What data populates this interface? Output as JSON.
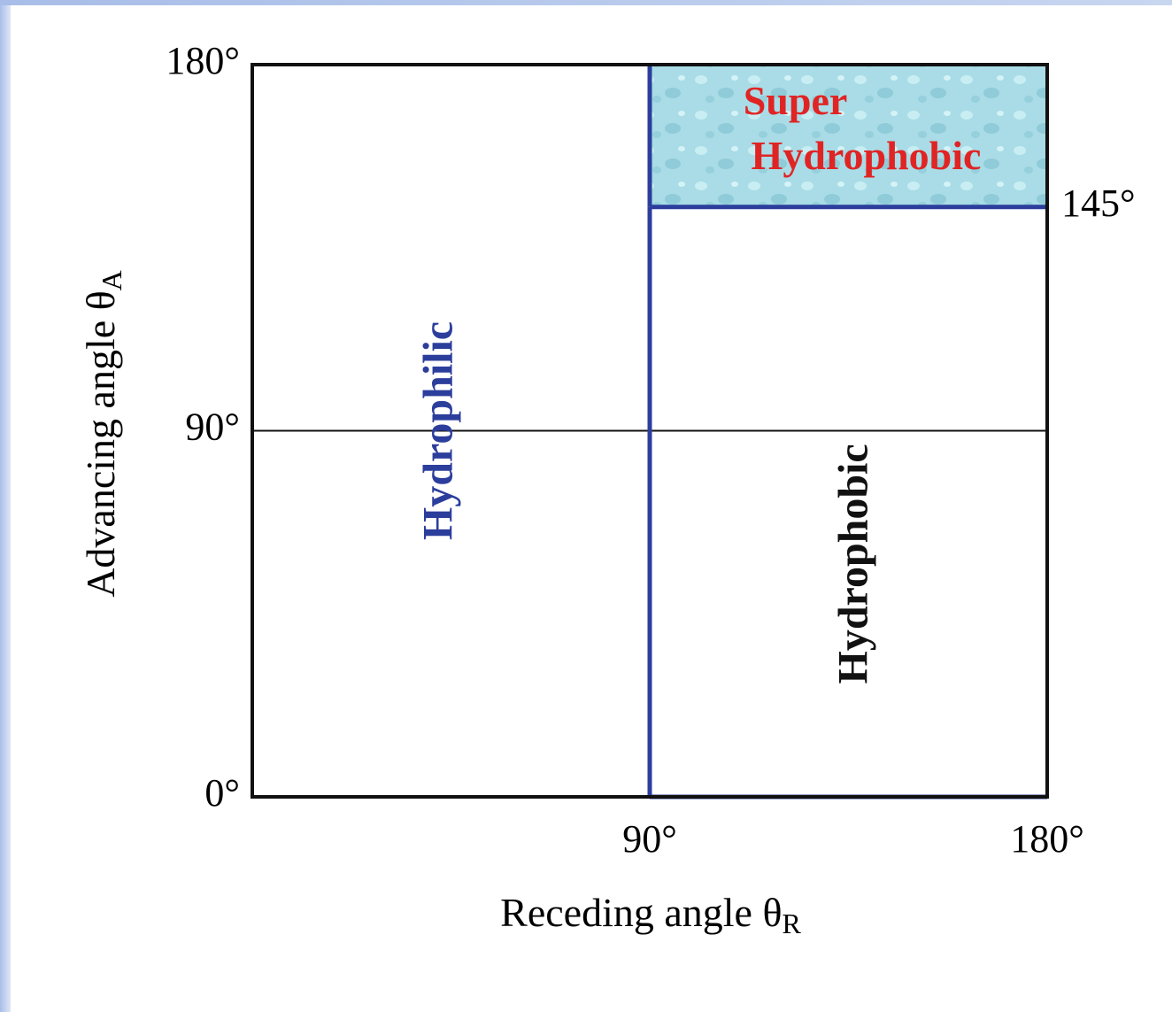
{
  "chart_data": {
    "type": "region",
    "xlabel": "Receding angle θ",
    "xlabel_sub": "R",
    "ylabel": "Advancing angle θ",
    "ylabel_sub": "A",
    "xlim": [
      0,
      180
    ],
    "ylim": [
      0,
      180
    ],
    "y2lim": [
      0,
      180
    ],
    "xticks": [
      {
        "value": 90,
        "label": "90°"
      },
      {
        "value": 180,
        "label": "180°"
      }
    ],
    "yticks": [
      {
        "value": 0,
        "label": "0°"
      },
      {
        "value": 90,
        "label": "90°"
      },
      {
        "value": 180,
        "label": "180°"
      }
    ],
    "y2ticks": [
      {
        "value": 145,
        "label": "145°"
      }
    ],
    "grid": true,
    "regions": [
      {
        "label": [
          "Hydrophilic"
        ],
        "color": "#2c3e9c",
        "x": [
          0,
          90
        ],
        "y": [
          0,
          180
        ],
        "vertical": true
      },
      {
        "label": [
          "Hydrophobic"
        ],
        "color": "#111111",
        "x": [
          90,
          180
        ],
        "y": [
          0,
          145
        ],
        "vertical": true,
        "border": "#2c3e9c"
      },
      {
        "label": [
          "Super",
          "Hydrophobic"
        ],
        "color": "#e02424",
        "x": [
          90,
          180
        ],
        "y": [
          145,
          180
        ],
        "vertical": false,
        "fill": "#a9dce6",
        "border": "#2c3e9c"
      }
    ]
  }
}
